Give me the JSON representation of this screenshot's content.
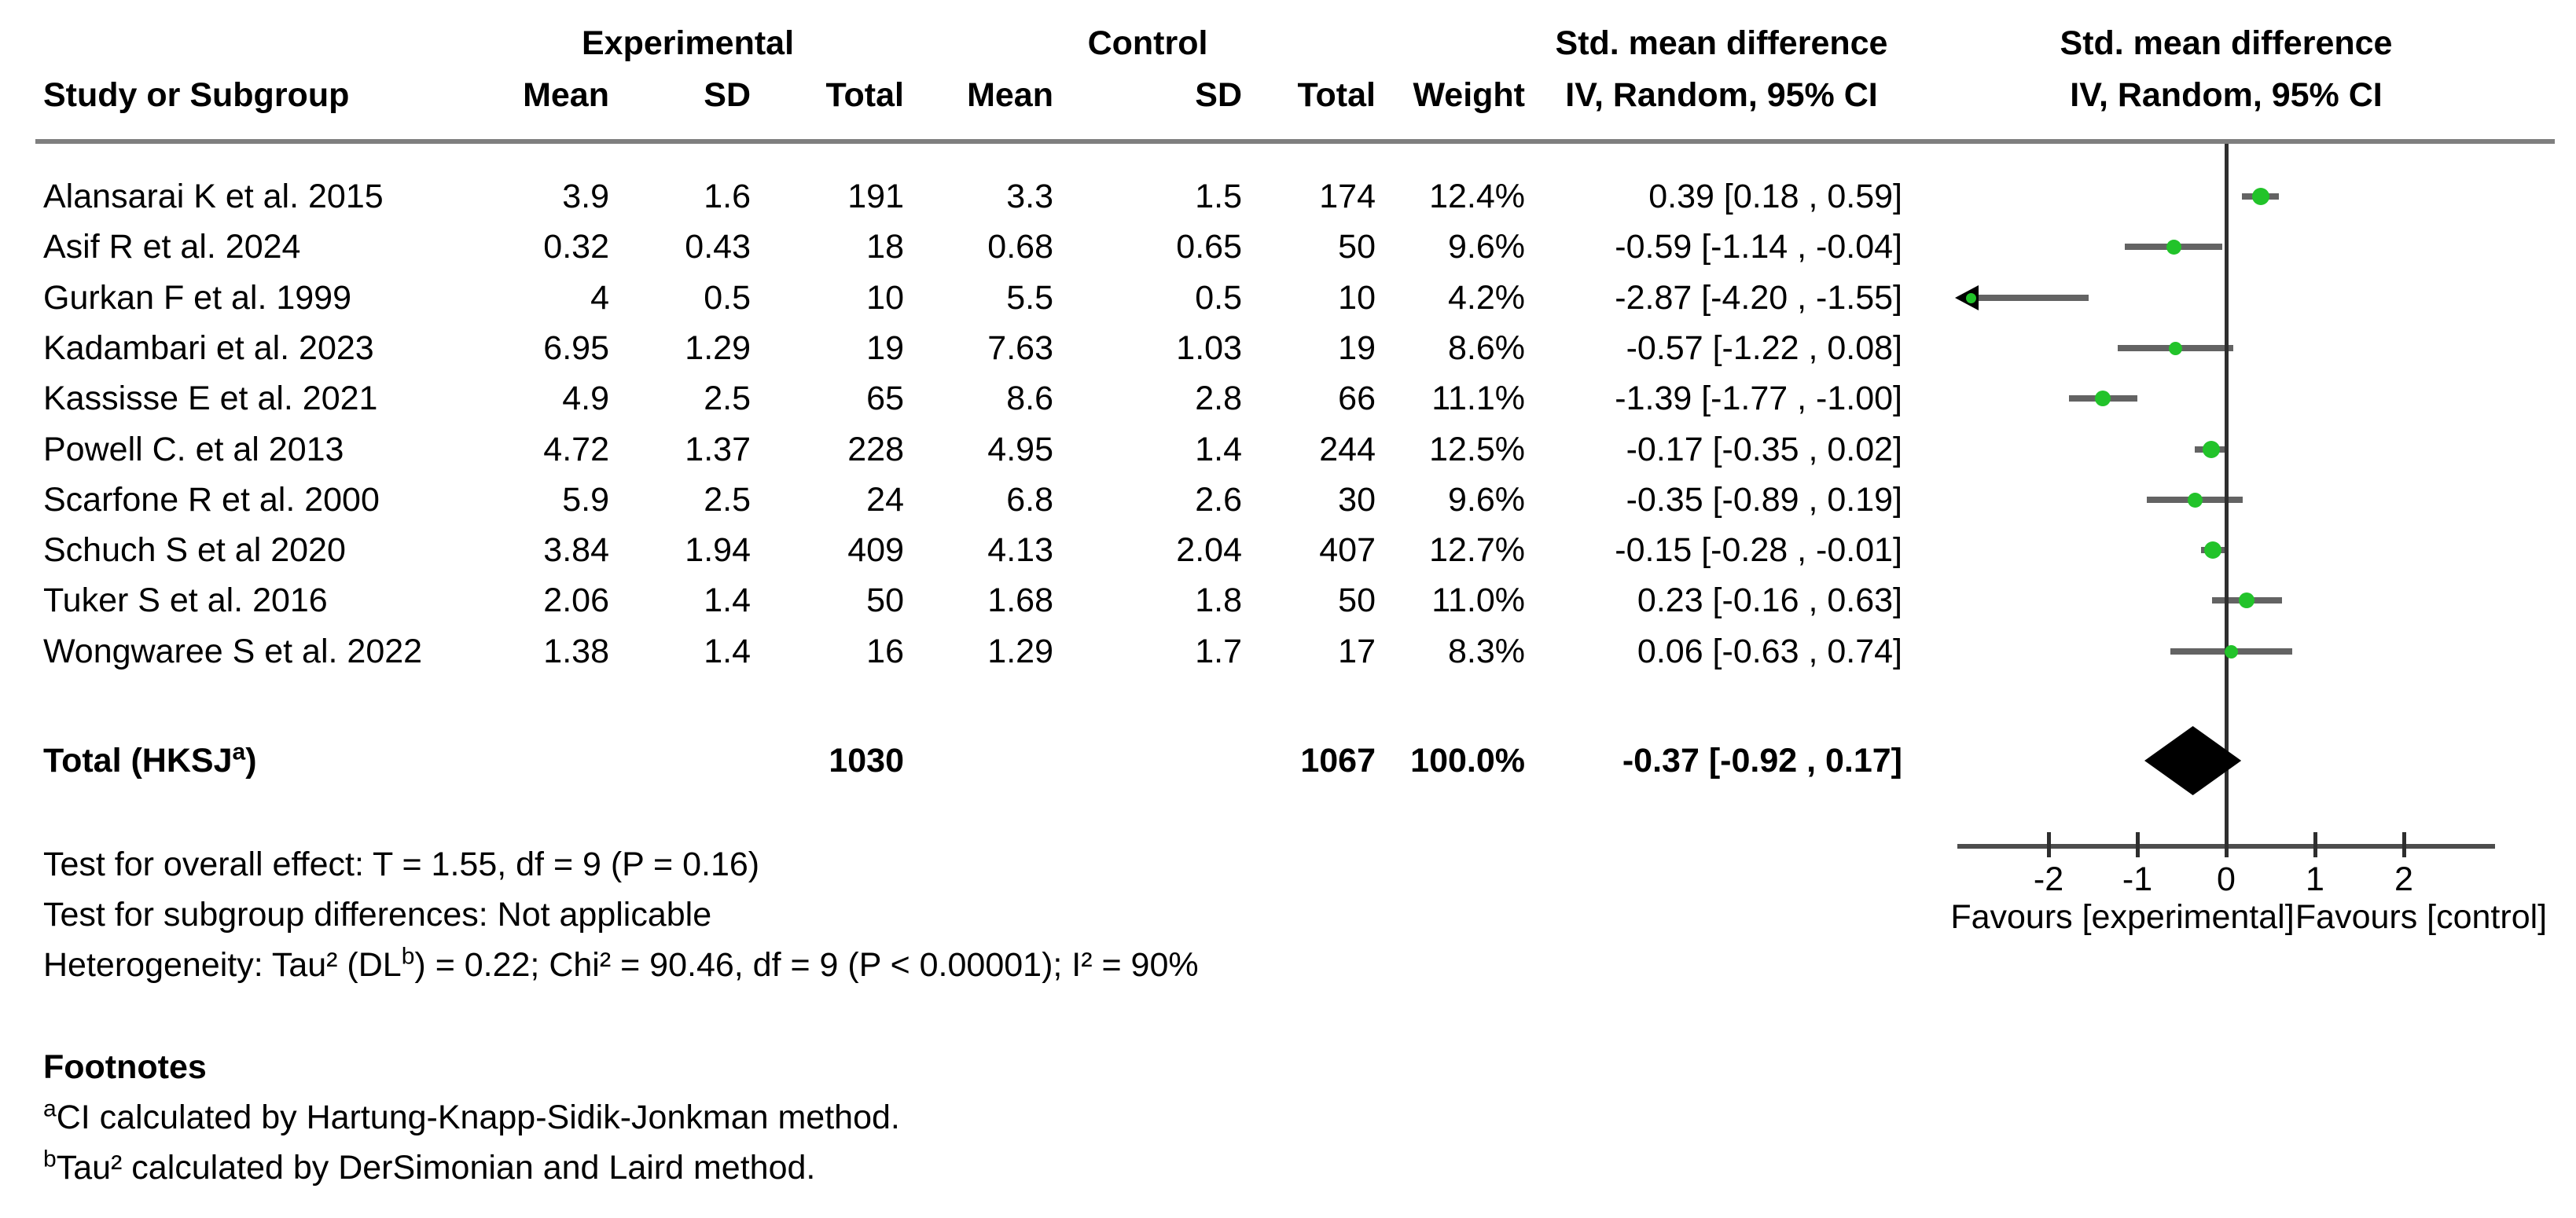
{
  "header": {
    "group_exp": "Experimental",
    "group_ctrl": "Control",
    "smd_label": "Std. mean difference",
    "method_label": "IV, Random, 95% CI",
    "col_study": "Study or Subgroup",
    "columns": [
      "Mean",
      "SD",
      "Total",
      "Mean",
      "SD",
      "Total",
      "Weight"
    ]
  },
  "chart_data": {
    "type": "forest",
    "effect_measure": "Std. mean difference",
    "model": "IV, Random, 95% CI",
    "axis": {
      "xlim": [
        -3,
        3
      ],
      "ticks": [
        -2,
        -1,
        0,
        1,
        2
      ],
      "favours_left": "Favours [experimental]",
      "favours_right": "Favours [control]"
    },
    "studies": [
      {
        "name": "Alansarai K et al. 2015",
        "exp_mean": "3.9",
        "exp_sd": "1.6",
        "exp_total": "191",
        "ctrl_mean": "3.3",
        "ctrl_sd": "1.5",
        "ctrl_total": "174",
        "weight": "12.4%",
        "weight_num": 12.4,
        "smd": 0.39,
        "ci_low": 0.18,
        "ci_high": 0.59,
        "ci_text": "0.39 [0.18 , 0.59]",
        "arrow_low": false
      },
      {
        "name": "Asif R et al. 2024",
        "exp_mean": "0.32",
        "exp_sd": "0.43",
        "exp_total": "18",
        "ctrl_mean": "0.68",
        "ctrl_sd": "0.65",
        "ctrl_total": "50",
        "weight": "9.6%",
        "weight_num": 9.6,
        "smd": -0.59,
        "ci_low": -1.14,
        "ci_high": -0.04,
        "ci_text": "-0.59 [-1.14 , -0.04]",
        "arrow_low": false
      },
      {
        "name": "Gurkan F et al. 1999",
        "exp_mean": "4",
        "exp_sd": "0.5",
        "exp_total": "10",
        "ctrl_mean": "5.5",
        "ctrl_sd": "0.5",
        "ctrl_total": "10",
        "weight": "4.2%",
        "weight_num": 4.2,
        "smd": -2.87,
        "ci_low": -4.2,
        "ci_high": -1.55,
        "ci_text": "-2.87 [-4.20 , -1.55]",
        "arrow_low": true
      },
      {
        "name": "Kadambari et al. 2023",
        "exp_mean": "6.95",
        "exp_sd": "1.29",
        "exp_total": "19",
        "ctrl_mean": "7.63",
        "ctrl_sd": "1.03",
        "ctrl_total": "19",
        "weight": "8.6%",
        "weight_num": 8.6,
        "smd": -0.57,
        "ci_low": -1.22,
        "ci_high": 0.08,
        "ci_text": "-0.57 [-1.22 , 0.08]",
        "arrow_low": false
      },
      {
        "name": "Kassisse E et al. 2021",
        "exp_mean": "4.9",
        "exp_sd": "2.5",
        "exp_total": "65",
        "ctrl_mean": "8.6",
        "ctrl_sd": "2.8",
        "ctrl_total": "66",
        "weight": "11.1%",
        "weight_num": 11.1,
        "smd": -1.39,
        "ci_low": -1.77,
        "ci_high": -1.0,
        "ci_text": "-1.39 [-1.77 , -1.00]",
        "arrow_low": false
      },
      {
        "name": "Powell C. et al 2013",
        "exp_mean": "4.72",
        "exp_sd": "1.37",
        "exp_total": "228",
        "ctrl_mean": "4.95",
        "ctrl_sd": "1.4",
        "ctrl_total": "244",
        "weight": "12.5%",
        "weight_num": 12.5,
        "smd": -0.17,
        "ci_low": -0.35,
        "ci_high": 0.02,
        "ci_text": "-0.17 [-0.35 , 0.02]",
        "arrow_low": false
      },
      {
        "name": "Scarfone R et al. 2000",
        "exp_mean": "5.9",
        "exp_sd": "2.5",
        "exp_total": "24",
        "ctrl_mean": "6.8",
        "ctrl_sd": "2.6",
        "ctrl_total": "30",
        "weight": "9.6%",
        "weight_num": 9.6,
        "smd": -0.35,
        "ci_low": -0.89,
        "ci_high": 0.19,
        "ci_text": "-0.35 [-0.89 , 0.19]",
        "arrow_low": false
      },
      {
        "name": "Schuch S et al 2020",
        "exp_mean": "3.84",
        "exp_sd": "1.94",
        "exp_total": "409",
        "ctrl_mean": "4.13",
        "ctrl_sd": "2.04",
        "ctrl_total": "407",
        "weight": "12.7%",
        "weight_num": 12.7,
        "smd": -0.15,
        "ci_low": -0.28,
        "ci_high": -0.01,
        "ci_text": "-0.15 [-0.28 , -0.01]",
        "arrow_low": false
      },
      {
        "name": "Tuker S et al. 2016",
        "exp_mean": "2.06",
        "exp_sd": "1.4",
        "exp_total": "50",
        "ctrl_mean": "1.68",
        "ctrl_sd": "1.8",
        "ctrl_total": "50",
        "weight": "11.0%",
        "weight_num": 11.0,
        "smd": 0.23,
        "ci_low": -0.16,
        "ci_high": 0.63,
        "ci_text": "0.23 [-0.16 , 0.63]",
        "arrow_low": false
      },
      {
        "name": "Wongwaree S et al. 2022",
        "exp_mean": "1.38",
        "exp_sd": "1.4",
        "exp_total": "16",
        "ctrl_mean": "1.29",
        "ctrl_sd": "1.7",
        "ctrl_total": "17",
        "weight": "8.3%",
        "weight_num": 8.3,
        "smd": 0.06,
        "ci_low": -0.63,
        "ci_high": 0.74,
        "ci_text": "0.06 [-0.63 , 0.74]",
        "arrow_low": false
      }
    ],
    "total": {
      "label_pre": "Total (HKSJ",
      "label_sup": "a",
      "label_post": ")",
      "exp_total": "1030",
      "ctrl_total": "1067",
      "weight": "100.0%",
      "smd": -0.37,
      "ci_low": -0.92,
      "ci_high": 0.17,
      "ci_text": "-0.37 [-0.92 , 0.17]"
    }
  },
  "stats": {
    "overall": "Test for overall effect: T = 1.55, df = 9 (P = 0.16)",
    "subgroup": "Test for subgroup differences: Not applicable",
    "het_pre": "Heterogeneity: Tau² (DL",
    "het_sup": "b",
    "het_post": ") = 0.22; Chi² = 90.46, df = 9 (P < 0.00001); I² = 90%"
  },
  "footnotes": {
    "title": "Footnotes",
    "items": [
      {
        "sup": "a",
        "text": "CI calculated by Hartung-Knapp-Sidik-Jonkman method."
      },
      {
        "sup": "b",
        "text": "Tau² calculated by DerSimonian and Laird method."
      }
    ]
  },
  "colors": {
    "marker_green": "#22c32a",
    "ci_line": "#636363",
    "axis": "#4d4d4d",
    "zero_line": "#2e2e2e",
    "rule": "#7f7f7f",
    "diamond": "#000000"
  }
}
